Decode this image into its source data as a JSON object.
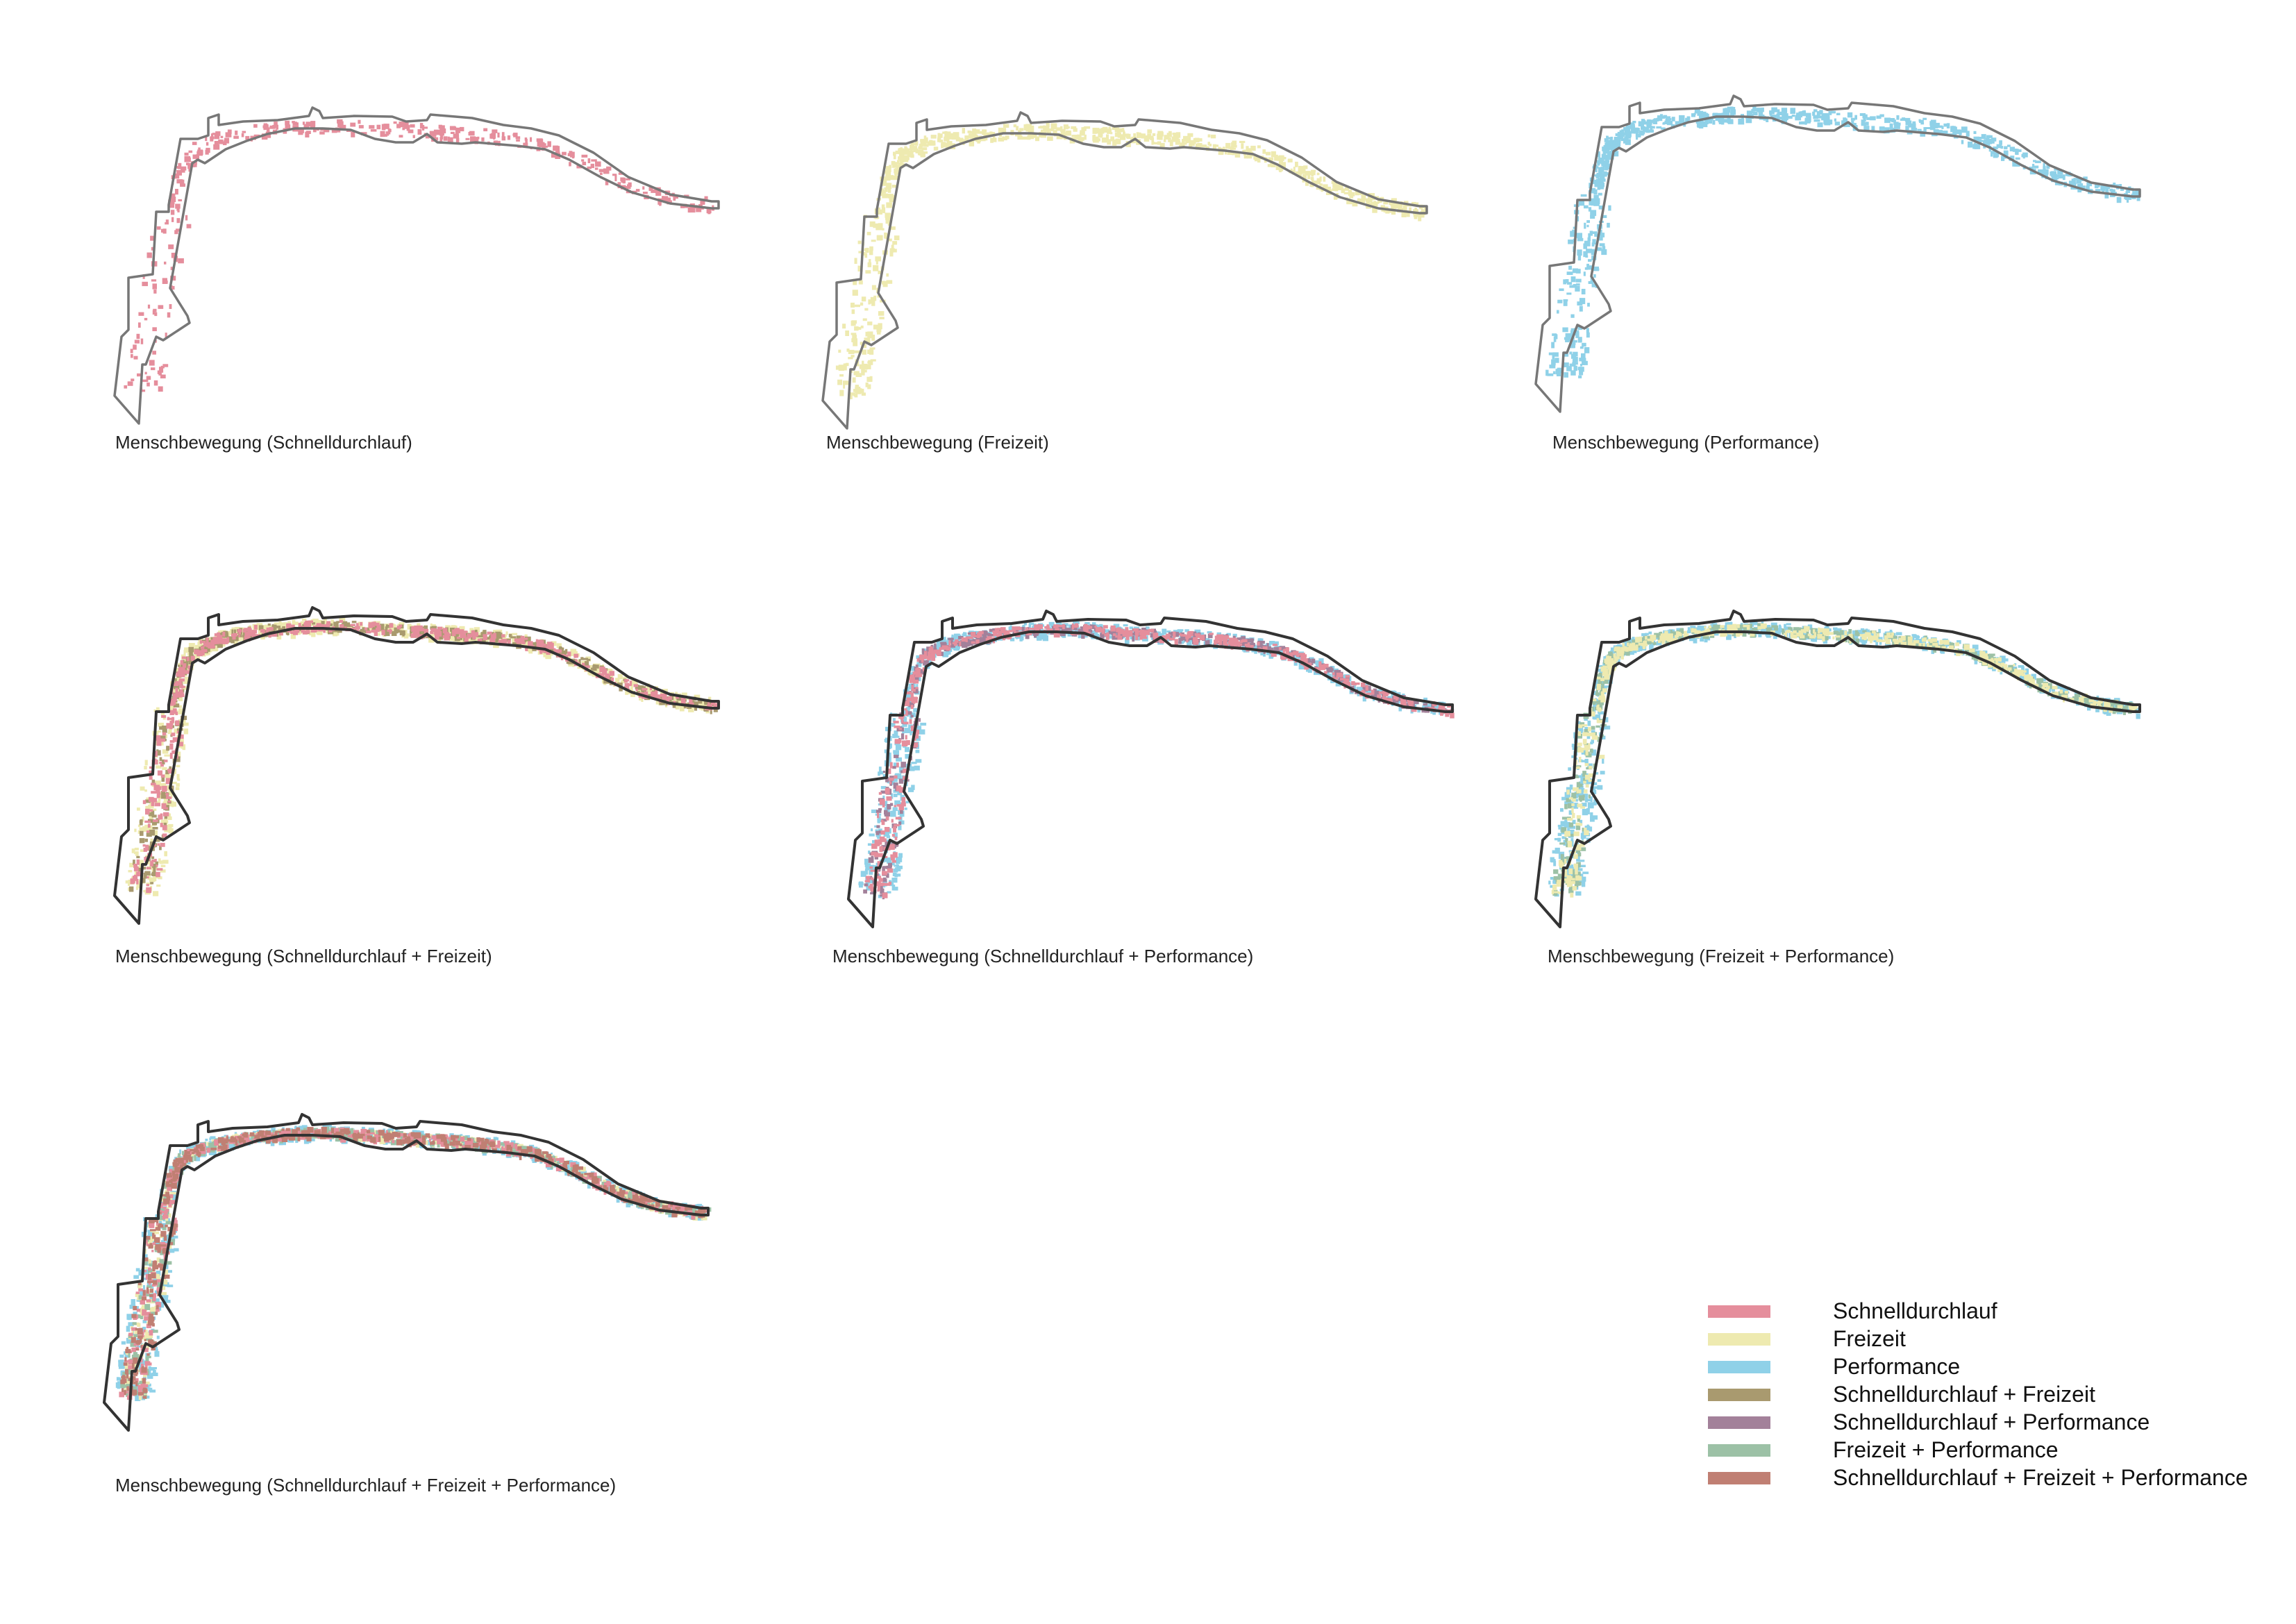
{
  "maps": [
    {
      "caption": "Menschbewegung (Schnelldurchlauf)",
      "layers": [
        "schnelldurchlauf"
      ]
    },
    {
      "caption": "Menschbewegung (Freizeit)",
      "layers": [
        "freizeit"
      ]
    },
    {
      "caption": "Menschbewegung (Performance)",
      "layers": [
        "performance"
      ]
    },
    {
      "caption": "Menschbewegung (Schnelldurchlauf + Freizeit)",
      "layers": [
        "freizeit",
        "schnelldurchlauf_freizeit",
        "schnelldurchlauf"
      ]
    },
    {
      "caption": "Menschbewegung (Schnelldurchlauf + Performance)",
      "layers": [
        "performance",
        "schnelldurchlauf_performance",
        "schnelldurchlauf"
      ]
    },
    {
      "caption": "Menschbewegung (Freizeit + Performance)",
      "layers": [
        "performance",
        "freizeit_performance",
        "freizeit"
      ]
    },
    {
      "caption": "Menschbewegung (Schnelldurchlauf + Freizeit + Performance)",
      "layers": [
        "performance",
        "freizeit",
        "freizeit_performance",
        "schnelldurchlauf",
        "schnelldurchlauf_freizeit_performance"
      ]
    }
  ],
  "legend": [
    {
      "key": "schnelldurchlauf",
      "label": "Schnelldurchlauf",
      "color": "#e58e9c"
    },
    {
      "key": "freizeit",
      "label": "Freizeit",
      "color": "#eeeab0"
    },
    {
      "key": "performance",
      "label": "Performance",
      "color": "#8fd1e8"
    },
    {
      "key": "schnelldurchlauf_freizeit",
      "label": "Schnelldurchlauf + Freizeit",
      "color": "#a99a6f"
    },
    {
      "key": "schnelldurchlauf_performance",
      "label": "Schnelldurchlauf + Performance",
      "color": "#a3819a"
    },
    {
      "key": "freizeit_performance",
      "label": "Freizeit + Performance",
      "color": "#9cc1a6"
    },
    {
      "key": "schnelldurchlauf_freizeit_performance",
      "label": "Schnelldurchlauf + Freizeit + Performance",
      "color": "#c07f73"
    }
  ],
  "outline_colors": {
    "single": "#777777",
    "combined": "#333333"
  }
}
